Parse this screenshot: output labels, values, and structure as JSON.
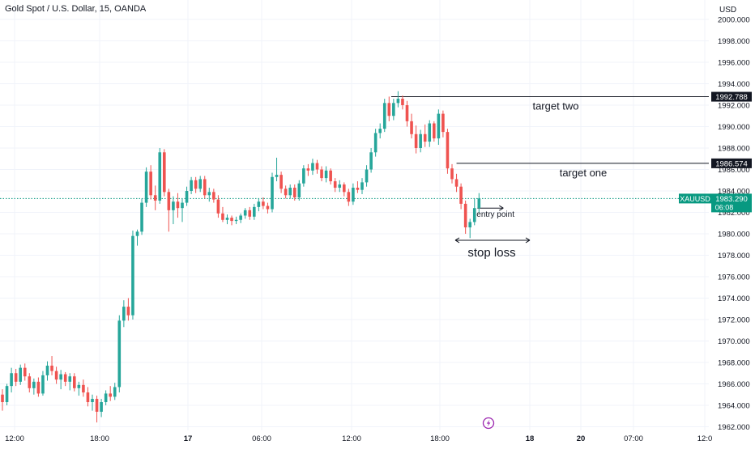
{
  "header": {
    "symbol_title": "Gold Spot / U.S. Dollar, 15, OANDA",
    "currency": "USD"
  },
  "colors": {
    "up": "#26a69a",
    "down": "#ef5350",
    "grid": "#f0f3fa",
    "axis_text": "#131722",
    "current_price": "#089981",
    "annotation": "#131722",
    "lightning_badge": "#9c27b0"
  },
  "chart_data": {
    "type": "candlestick",
    "symbol": "XAUUSD",
    "ylim": [
      1962,
      2001
    ],
    "y_ticks": [
      "1962.000",
      "1964.000",
      "1966.000",
      "1968.000",
      "1970.000",
      "1972.000",
      "1974.000",
      "1976.000",
      "1978.000",
      "1980.000",
      "1982.000",
      "1984.000",
      "1986.000",
      "1988.000",
      "1990.000",
      "1992.000",
      "1994.000",
      "1996.000",
      "1998.000",
      "2000.000"
    ],
    "x_ticks": [
      "12:00",
      "18:00",
      "17",
      "06:00",
      "12:00",
      "18:00",
      "18",
      "20",
      "07:00",
      "12:0"
    ],
    "current_price": {
      "symbol_label": "XAUUSD",
      "value": "1983.290",
      "countdown": "06:08"
    },
    "target_two": {
      "price_label": "1992.788",
      "text": "target two"
    },
    "target_one": {
      "price_label": "1986.574",
      "text": "target one"
    },
    "entry_label": "entry point",
    "stop_label": "stop loss",
    "candles": [
      [
        1965.0,
        1965.5,
        1963.5,
        1964.3
      ],
      [
        1964.3,
        1966.0,
        1964.0,
        1965.8
      ],
      [
        1965.8,
        1967.5,
        1965.2,
        1967.0
      ],
      [
        1967.0,
        1967.4,
        1965.8,
        1966.2
      ],
      [
        1966.2,
        1967.8,
        1965.9,
        1967.5
      ],
      [
        1967.5,
        1967.9,
        1966.3,
        1966.7
      ],
      [
        1966.7,
        1967.0,
        1965.2,
        1965.6
      ],
      [
        1965.6,
        1966.5,
        1965.0,
        1966.2
      ],
      [
        1966.2,
        1966.6,
        1964.8,
        1965.1
      ],
      [
        1965.1,
        1967.2,
        1964.9,
        1966.8
      ],
      [
        1966.8,
        1968.1,
        1966.3,
        1967.7
      ],
      [
        1967.7,
        1968.6,
        1966.8,
        1967.2
      ],
      [
        1967.2,
        1967.6,
        1966.0,
        1966.4
      ],
      [
        1966.4,
        1967.3,
        1965.5,
        1966.9
      ],
      [
        1966.9,
        1967.1,
        1965.8,
        1966.2
      ],
      [
        1966.2,
        1967.0,
        1965.4,
        1966.7
      ],
      [
        1966.7,
        1967.0,
        1965.3,
        1965.6
      ],
      [
        1965.6,
        1966.2,
        1964.9,
        1965.9
      ],
      [
        1965.9,
        1966.4,
        1964.8,
        1965.2
      ],
      [
        1965.2,
        1965.7,
        1963.9,
        1964.3
      ],
      [
        1964.3,
        1965.0,
        1963.5,
        1964.6
      ],
      [
        1964.6,
        1964.9,
        1962.4,
        1963.4
      ],
      [
        1963.4,
        1964.6,
        1962.9,
        1964.3
      ],
      [
        1964.3,
        1965.4,
        1964.0,
        1965.1
      ],
      [
        1965.1,
        1965.8,
        1964.4,
        1964.8
      ],
      [
        1964.8,
        1966.1,
        1964.5,
        1965.7
      ],
      [
        1965.7,
        1972.4,
        1965.2,
        1971.9
      ],
      [
        1971.9,
        1973.8,
        1971.3,
        1973.2
      ],
      [
        1973.2,
        1974.0,
        1971.9,
        1972.4
      ],
      [
        1972.4,
        1980.3,
        1972.0,
        1979.8
      ],
      [
        1979.8,
        1980.4,
        1978.9,
        1980.2
      ],
      [
        1980.2,
        1983.3,
        1979.9,
        1982.9
      ],
      [
        1982.9,
        1986.2,
        1982.5,
        1985.8
      ],
      [
        1985.8,
        1986.4,
        1983.2,
        1983.6
      ],
      [
        1983.6,
        1984.5,
        1982.2,
        1983.1
      ],
      [
        1983.1,
        1988.0,
        1982.8,
        1987.6
      ],
      [
        1987.6,
        1987.9,
        1983.5,
        1983.9
      ],
      [
        1983.9,
        1984.2,
        1980.2,
        1982.2
      ],
      [
        1982.2,
        1983.5,
        1980.9,
        1983.0
      ],
      [
        1983.0,
        1983.8,
        1981.5,
        1982.4
      ],
      [
        1982.4,
        1983.3,
        1981.1,
        1982.9
      ],
      [
        1982.9,
        1984.4,
        1982.6,
        1984.0
      ],
      [
        1984.0,
        1985.3,
        1983.7,
        1985.0
      ],
      [
        1985.0,
        1985.3,
        1983.8,
        1984.2
      ],
      [
        1984.2,
        1985.4,
        1983.9,
        1985.1
      ],
      [
        1985.1,
        1985.4,
        1983.3,
        1983.6
      ],
      [
        1983.6,
        1984.3,
        1983.0,
        1983.9
      ],
      [
        1983.9,
        1984.2,
        1982.9,
        1983.2
      ],
      [
        1983.2,
        1983.6,
        1981.5,
        1981.9
      ],
      [
        1981.9,
        1982.5,
        1981.1,
        1981.3
      ],
      [
        1981.3,
        1981.8,
        1980.9,
        1981.5
      ],
      [
        1981.5,
        1981.7,
        1980.8,
        1981.2
      ],
      [
        1981.2,
        1981.6,
        1980.9,
        1981.3
      ],
      [
        1981.3,
        1981.9,
        1981.0,
        1981.7
      ],
      [
        1981.7,
        1982.4,
        1981.4,
        1982.2
      ],
      [
        1982.2,
        1982.5,
        1981.3,
        1981.6
      ],
      [
        1981.6,
        1982.8,
        1981.3,
        1982.5
      ],
      [
        1982.5,
        1983.3,
        1982.1,
        1983.0
      ],
      [
        1983.0,
        1983.4,
        1982.3,
        1982.6
      ],
      [
        1982.6,
        1982.9,
        1981.9,
        1982.3
      ],
      [
        1982.3,
        1985.7,
        1982.0,
        1985.3
      ],
      [
        1985.3,
        1987.1,
        1984.9,
        1985.5
      ],
      [
        1985.5,
        1985.8,
        1983.8,
        1984.2
      ],
      [
        1984.2,
        1984.5,
        1983.3,
        1983.6
      ],
      [
        1983.6,
        1984.6,
        1983.3,
        1984.3
      ],
      [
        1984.3,
        1984.6,
        1983.1,
        1983.4
      ],
      [
        1983.4,
        1985.0,
        1983.1,
        1984.7
      ],
      [
        1984.7,
        1986.4,
        1984.4,
        1986.1
      ],
      [
        1986.1,
        1986.5,
        1985.4,
        1985.9
      ],
      [
        1985.9,
        1987.0,
        1985.5,
        1986.6
      ],
      [
        1986.6,
        1986.9,
        1985.6,
        1986.0
      ],
      [
        1986.0,
        1986.3,
        1984.9,
        1985.2
      ],
      [
        1985.2,
        1986.3,
        1984.8,
        1985.9
      ],
      [
        1985.9,
        1986.1,
        1984.6,
        1984.9
      ],
      [
        1984.9,
        1985.2,
        1983.9,
        1984.3
      ],
      [
        1984.3,
        1985.0,
        1983.9,
        1984.6
      ],
      [
        1984.6,
        1984.8,
        1983.5,
        1983.9
      ],
      [
        1983.9,
        1984.2,
        1982.6,
        1983.0
      ],
      [
        1983.0,
        1984.7,
        1982.7,
        1984.3
      ],
      [
        1984.3,
        1984.9,
        1983.8,
        1984.1
      ],
      [
        1984.1,
        1985.2,
        1983.7,
        1984.8
      ],
      [
        1984.8,
        1986.4,
        1984.4,
        1986.0
      ],
      [
        1986.0,
        1988.0,
        1985.7,
        1987.6
      ],
      [
        1987.6,
        1989.8,
        1987.2,
        1989.4
      ],
      [
        1989.4,
        1990.3,
        1988.9,
        1989.8
      ],
      [
        1989.8,
        1992.6,
        1989.5,
        1992.2
      ],
      [
        1992.2,
        1992.8,
        1990.5,
        1991.0
      ],
      [
        1991.0,
        1992.6,
        1990.6,
        1992.2
      ],
      [
        1992.2,
        1993.3,
        1991.8,
        1992.6
      ],
      [
        1992.6,
        1992.9,
        1991.6,
        1992.0
      ],
      [
        1992.0,
        1992.4,
        1990.0,
        1990.5
      ],
      [
        1990.5,
        1991.2,
        1988.9,
        1989.3
      ],
      [
        1989.3,
        1990.1,
        1987.5,
        1988.0
      ],
      [
        1988.0,
        1989.7,
        1987.6,
        1989.3
      ],
      [
        1989.3,
        1990.2,
        1988.1,
        1988.6
      ],
      [
        1988.6,
        1990.6,
        1988.1,
        1990.3
      ],
      [
        1990.3,
        1990.5,
        1988.6,
        1988.9
      ],
      [
        1988.9,
        1991.6,
        1988.3,
        1991.2
      ],
      [
        1991.2,
        1991.5,
        1989.0,
        1989.5
      ],
      [
        1989.5,
        1989.8,
        1985.6,
        1986.1
      ],
      [
        1986.1,
        1986.5,
        1984.7,
        1985.1
      ],
      [
        1985.1,
        1985.6,
        1983.9,
        1984.4
      ],
      [
        1984.4,
        1984.7,
        1982.3,
        1982.8
      ],
      [
        1982.8,
        1983.1,
        1980.0,
        1980.6
      ],
      [
        1980.6,
        1981.4,
        1979.6,
        1981.1
      ],
      [
        1981.1,
        1983.3,
        1980.8,
        1982.4
      ],
      [
        1982.4,
        1983.8,
        1982.0,
        1983.3
      ]
    ]
  }
}
